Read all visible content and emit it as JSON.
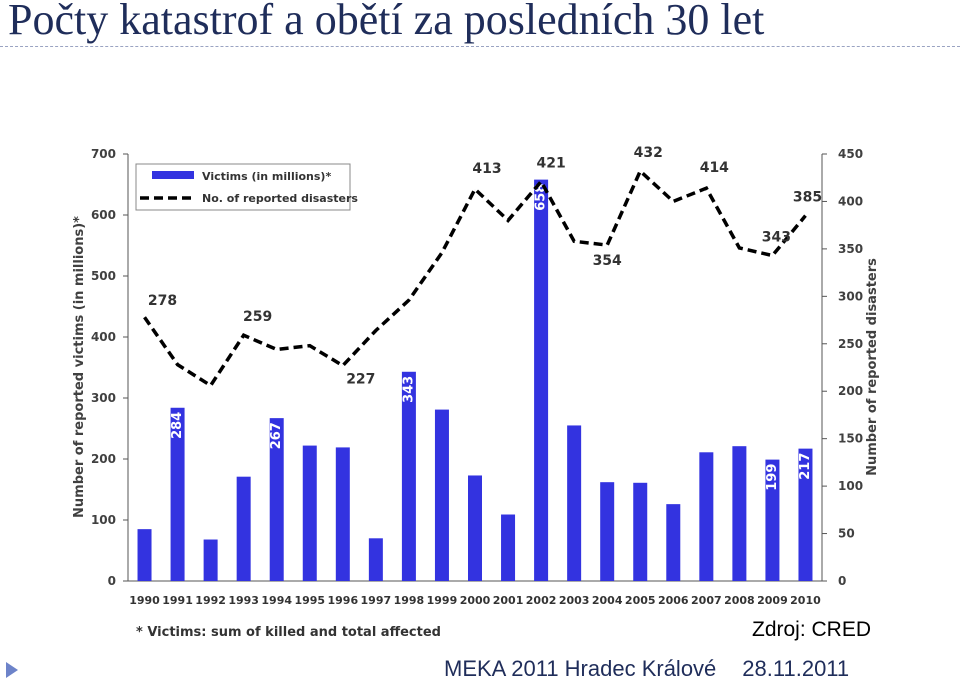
{
  "slide": {
    "title": "Počty katastrof a obětí za posledních 30 let",
    "source": "Zdroj: CRED",
    "footer_event": "MEKA 2011 Hradec Králové",
    "footer_date": "28.11.2011"
  },
  "chart_data": {
    "type": "bar",
    "categories": [
      "1990",
      "1991",
      "1992",
      "1993",
      "1994",
      "1995",
      "1996",
      "1997",
      "1998",
      "1999",
      "2000",
      "2001",
      "2002",
      "2003",
      "2004",
      "2005",
      "2006",
      "2007",
      "2008",
      "2009",
      "2010"
    ],
    "series": [
      {
        "name": "Victims (in millions)*",
        "type": "bar",
        "axis": "left",
        "color": "#3333e0",
        "values": [
          85,
          284,
          68,
          171,
          267,
          222,
          219,
          70,
          343,
          281,
          173,
          109,
          658,
          255,
          162,
          161,
          126,
          211,
          221,
          199,
          217
        ],
        "labels": [
          "",
          "284",
          "",
          "",
          "267",
          "",
          "",
          "",
          "343",
          "",
          "",
          "",
          "658",
          "",
          "",
          "",
          "",
          "",
          "",
          "199",
          "217"
        ]
      },
      {
        "name": "No. of reported disasters",
        "type": "line",
        "axis": "right",
        "color": "#000000",
        "values": [
          278,
          228,
          206,
          259,
          244,
          248,
          227,
          264,
          296,
          346,
          413,
          380,
          421,
          358,
          354,
          432,
          400,
          414,
          351,
          343,
          385
        ],
        "labels": [
          "278",
          "",
          "",
          "259",
          "",
          "",
          "227",
          "",
          "",
          "",
          "413",
          "",
          "421",
          "",
          "354",
          "432",
          "",
          "414",
          "",
          "343",
          "385"
        ]
      }
    ],
    "ylabel": "Number of reported victims (in millions)*",
    "y2label": "Number of reported disasters",
    "ylim": [
      0,
      700
    ],
    "y2lim": [
      0,
      450
    ],
    "yticks": [
      0,
      100,
      200,
      300,
      400,
      500,
      600,
      700
    ],
    "y2ticks": [
      0,
      50,
      100,
      150,
      200,
      250,
      300,
      350,
      400,
      450
    ],
    "footnote": "* Victims: sum of killed and total affected",
    "legend_position": "top-left",
    "grid": false
  }
}
